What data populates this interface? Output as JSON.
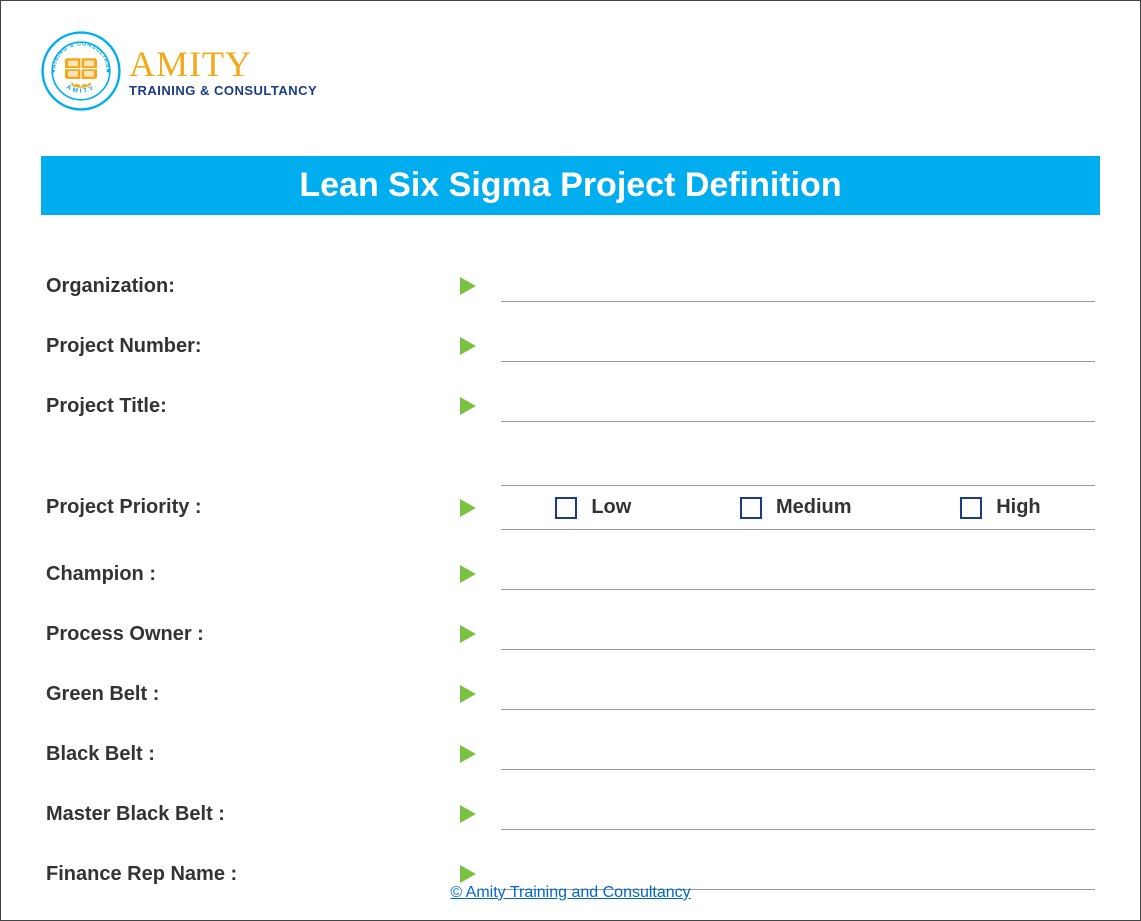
{
  "colors": {
    "title_bar_bg": "#00aeef",
    "arrow_fill": "#7cc242",
    "checkbox_border": "#1a3a8a",
    "logo_main": "#f2a818",
    "logo_sub": "#1a3a8a",
    "logo_seal_outer": "#00aeef",
    "logo_seal_inner": "#f2a818",
    "footer_link": "#0066cc"
  },
  "logo": {
    "main": "AMITY",
    "sub": "TRAINING & CONSULTANCY",
    "seal_top": "TRAINING & CONSULTANCY",
    "seal_bottom": "AMITY"
  },
  "title": "Lean Six Sigma Project Definition",
  "fields_group1": [
    {
      "label": "Organization:"
    },
    {
      "label": "Project Number:"
    },
    {
      "label": "Project Title:"
    }
  ],
  "priority": {
    "label": "Project Priority :",
    "options": [
      "Low",
      "Medium",
      "High"
    ]
  },
  "fields_group2": [
    {
      "label": "Champion :"
    },
    {
      "label": "Process Owner :"
    },
    {
      "label": "Green Belt :"
    },
    {
      "label": "Black Belt :"
    },
    {
      "label": "Master Black Belt :"
    },
    {
      "label": "Finance Rep Name :"
    }
  ],
  "footer": "© Amity Training and Consultancy"
}
